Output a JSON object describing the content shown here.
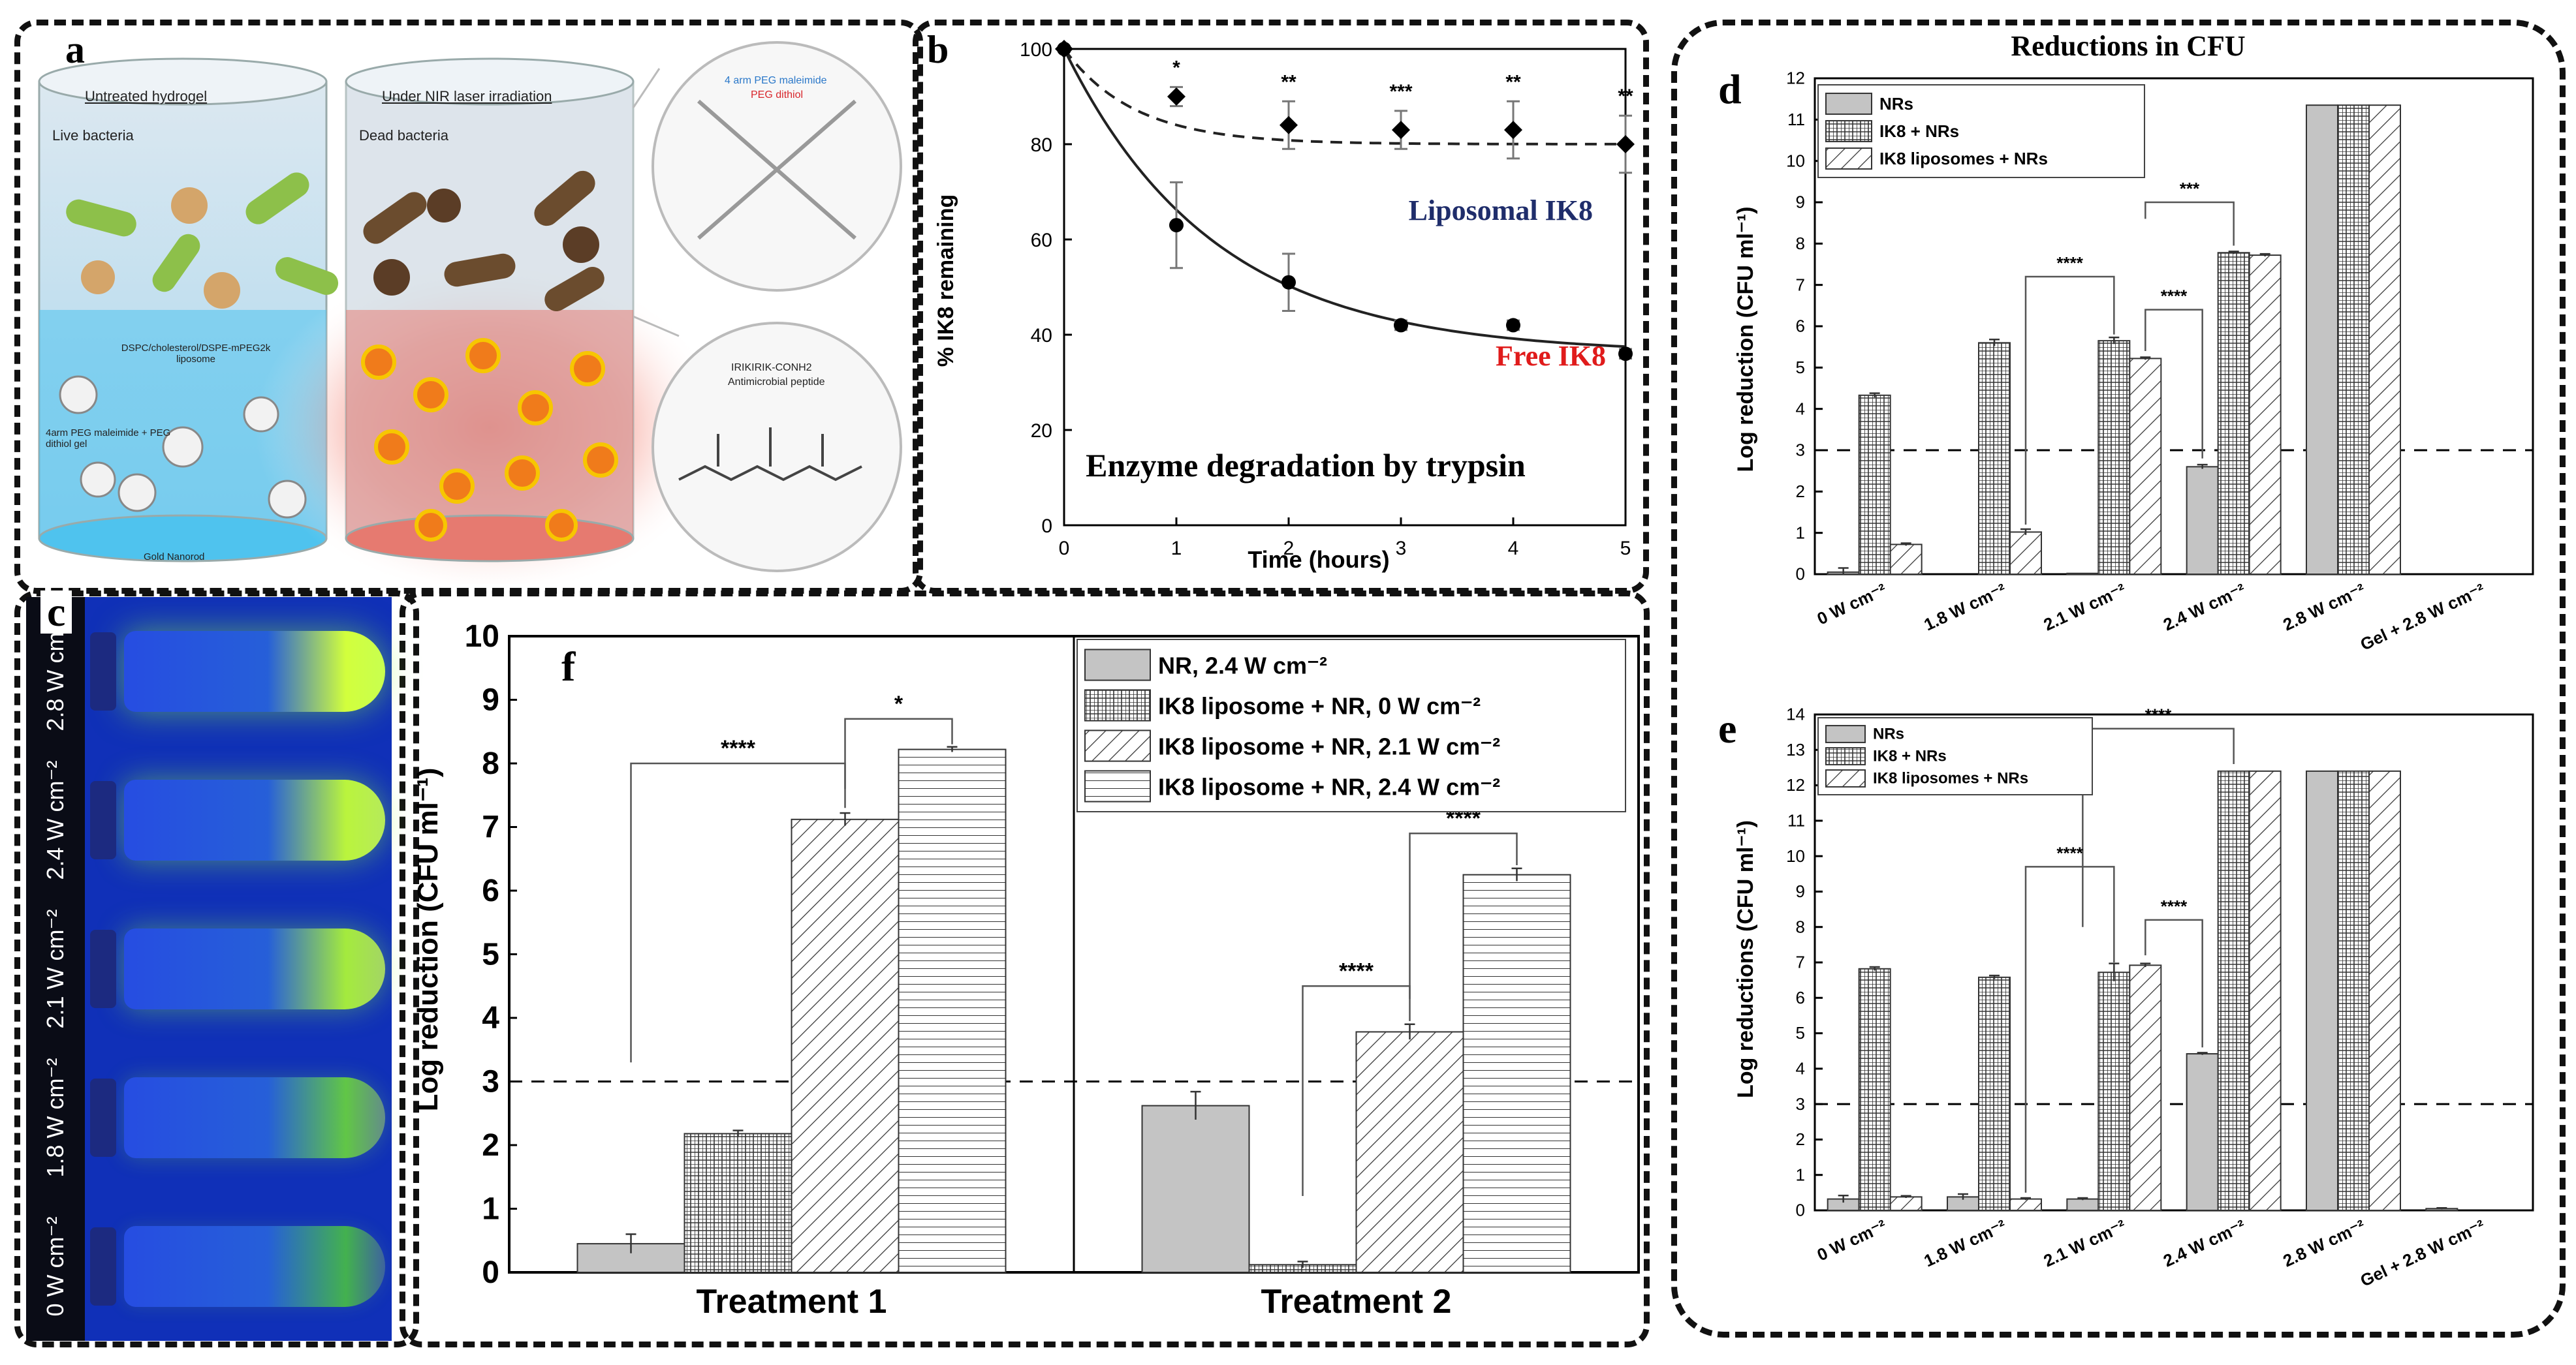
{
  "panel_labels": {
    "a": "a",
    "b": "b",
    "c": "c",
    "d": "d",
    "e": "e",
    "f": "f"
  },
  "panel_a": {
    "left_title": "Untreated hydrogel",
    "right_title": "Under NIR laser irradiation",
    "live_bacteria": "Live bacteria",
    "dead_bacteria": "Dead bacteria",
    "liposome_label": "DSPC/cholesterol/DSPE-mPEG2k liposome",
    "gel_label": "4arm PEG maleimide + PEG dithiol gel",
    "nanorod_label": "Gold Nanorod",
    "peg_maleimide": "4 arm PEG maleimide",
    "peg_dithiol": "PEG dithiol",
    "peptide_seq": "IRIKIRIK-CONH2",
    "peptide_name": "Antimicrobial peptide"
  },
  "panel_c": {
    "labels": [
      "2.8 W cm⁻²",
      "2.4 W cm⁻²",
      "2.1 W cm⁻²",
      "1.8 W cm⁻²",
      "0 W cm⁻²"
    ],
    "glow_intensity": [
      1.0,
      0.9,
      0.8,
      0.45,
      0.25
    ]
  },
  "chart_data": [
    {
      "id": "b",
      "type": "line",
      "title": "Enzyme degradation by trypsin",
      "xlabel": "Time (hours)",
      "ylabel": "% IK8 remaining",
      "xlim": [
        0,
        5
      ],
      "ylim": [
        0,
        100
      ],
      "xticks": [
        0,
        1,
        2,
        3,
        4,
        5
      ],
      "yticks": [
        0,
        20,
        40,
        60,
        80,
        100
      ],
      "series": [
        {
          "name": "Liposomal  IK8",
          "x": [
            0,
            1,
            2,
            3,
            4,
            5
          ],
          "y": [
            100,
            90,
            84,
            83,
            83,
            80
          ],
          "err": [
            0,
            2,
            5,
            4,
            6,
            6
          ],
          "fit": {
            "plateau": 80,
            "k": 1.6
          },
          "color": "#1f2d6b",
          "style": "dashed",
          "marker": "diamond"
        },
        {
          "name": "Free IK8",
          "x": [
            0,
            1,
            2,
            3,
            4,
            5
          ],
          "y": [
            100,
            63,
            51,
            42,
            42,
            36
          ],
          "err": [
            0,
            9,
            6,
            1,
            1,
            1
          ],
          "fit": {
            "plateau": 36,
            "k": 0.75
          },
          "color": "#e01b1b",
          "style": "solid",
          "marker": "circle"
        }
      ],
      "significance": [
        "*",
        "**",
        "***",
        "**",
        "**"
      ]
    },
    {
      "id": "d",
      "type": "bar",
      "title": "Reductions in CFU",
      "ylabel": "Log reduction (CFU ml⁻¹)",
      "ylim": [
        0,
        12
      ],
      "yticks": [
        0,
        1,
        2,
        3,
        4,
        5,
        6,
        7,
        8,
        9,
        10,
        11,
        12
      ],
      "threshold": 3,
      "categories": [
        "0 W cm⁻²",
        "1.8 W cm⁻²",
        "2.1 W cm⁻²",
        "2.4 W cm⁻²",
        "2.8 W cm⁻²",
        "Gel + 2.8 W cm⁻²"
      ],
      "series": [
        {
          "name": "NRs",
          "values": [
            0.05,
            0,
            0.02,
            2.6,
            11.35,
            0
          ],
          "err": [
            0.1,
            0,
            0,
            0.05,
            0,
            0
          ]
        },
        {
          "name": "IK8 + NRs",
          "values": [
            4.33,
            5.6,
            5.65,
            7.78,
            11.35,
            0
          ],
          "err": [
            0.05,
            0.08,
            0.08,
            0.03,
            0,
            0
          ]
        },
        {
          "name": "IK8 liposomes + NRs",
          "values": [
            0.72,
            1.02,
            5.22,
            7.72,
            11.35,
            0
          ],
          "err": [
            0.03,
            0.07,
            0.03,
            0.03,
            0,
            0
          ]
        }
      ],
      "brackets": [
        {
          "label": "***",
          "y": 9.0
        },
        {
          "label": "****",
          "y": 7.2
        },
        {
          "label": "****",
          "y": 6.4
        }
      ]
    },
    {
      "id": "e",
      "type": "bar",
      "ylabel": "Log reductions (CFU ml⁻¹)",
      "ylim": [
        0,
        14
      ],
      "yticks": [
        0,
        1,
        2,
        3,
        4,
        5,
        6,
        7,
        8,
        9,
        10,
        11,
        12,
        13,
        14
      ],
      "threshold": 3,
      "categories": [
        "0 W cm⁻²",
        "1.8 W cm⁻²",
        "2.1 W cm⁻²",
        "2.4 W cm⁻²",
        "2.8 W cm⁻²",
        "Gel + 2.8 W cm⁻²"
      ],
      "series": [
        {
          "name": "NRs",
          "values": [
            0.32,
            0.38,
            0.32,
            4.42,
            12.4,
            0.05
          ],
          "err": [
            0.1,
            0.08,
            0.03,
            0.03,
            0,
            0.02
          ]
        },
        {
          "name": "IK8 + NRs",
          "values": [
            6.82,
            6.58,
            6.72,
            12.4,
            12.4,
            0
          ],
          "err": [
            0.05,
            0.05,
            0.25,
            0,
            0,
            0
          ]
        },
        {
          "name": "IK8 liposomes + NRs",
          "values": [
            0.38,
            0.32,
            6.92,
            12.4,
            12.4,
            0
          ],
          "err": [
            0.03,
            0.03,
            0.05,
            0,
            0,
            0
          ]
        }
      ],
      "brackets": [
        {
          "label": "****",
          "y": 13.6
        },
        {
          "label": "****",
          "y": 9.7
        },
        {
          "label": "****",
          "y": 8.2
        }
      ]
    },
    {
      "id": "f",
      "type": "bar",
      "ylabel": "Log reduction (CFU ml⁻¹)",
      "ylim": [
        0,
        10
      ],
      "yticks": [
        0,
        1,
        2,
        3,
        4,
        5,
        6,
        7,
        8,
        9,
        10
      ],
      "threshold": 3,
      "categories": [
        "Treatment 1",
        "Treatment 2"
      ],
      "series": [
        {
          "name": "NR, 2.4 W cm⁻²",
          "values": [
            0.45,
            2.62
          ],
          "err": [
            0.15,
            0.22
          ]
        },
        {
          "name": "IK8 liposome + NR, 0 W cm⁻²",
          "values": [
            2.18,
            0.12
          ],
          "err": [
            0.05,
            0.05
          ]
        },
        {
          "name": "IK8 liposome + NR, 2.1 W cm⁻²",
          "values": [
            7.12,
            3.78
          ],
          "err": [
            0.1,
            0.12
          ]
        },
        {
          "name": "IK8 liposome + NR, 2.4 W cm⁻²",
          "values": [
            8.22,
            6.25
          ],
          "err": [
            0.04,
            0.1
          ]
        }
      ],
      "brackets": [
        {
          "label": "****",
          "y": 8.0
        },
        {
          "label": "*",
          "y": 8.7
        },
        {
          "label": "****",
          "y": 4.5
        },
        {
          "label": "****",
          "y": 6.9
        }
      ]
    }
  ]
}
